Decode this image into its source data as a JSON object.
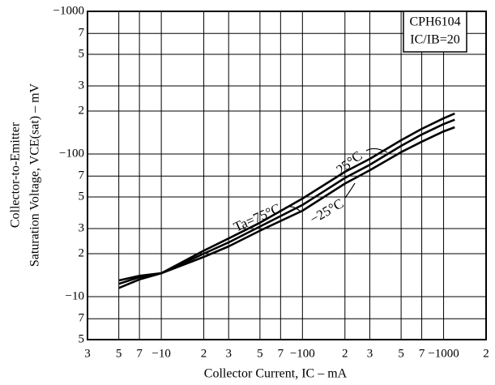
{
  "chart_data": {
    "type": "line",
    "annotations": {
      "box_title": "CPH6104",
      "box_condition": "IC/IB=20"
    },
    "x_label": "Collector Current, IC  – mA",
    "y_label_lines": [
      "Collector-to-Emitter",
      "Saturation Voltage, VCE(sat)  –  mV"
    ],
    "log_x": true,
    "log_y": true,
    "grid": true,
    "x": [
      5,
      7,
      10,
      20,
      30,
      50,
      100,
      200,
      300,
      500,
      700,
      1000,
      1200
    ],
    "series": [
      {
        "name": "Ta=75°C",
        "color": "#000000",
        "values": [
          11.5,
          13.2,
          14.6,
          21,
          25.6,
          33,
          48.7,
          75,
          92.5,
          125,
          150,
          178,
          192
        ]
      },
      {
        "name": "25°C",
        "color": "#000000",
        "values": [
          12.3,
          13.7,
          14.6,
          20,
          24,
          31,
          43.9,
          68,
          84,
          114,
          137,
          162,
          174
        ]
      },
      {
        "name": "−25°C",
        "color": "#000000",
        "values": [
          13,
          14,
          14.6,
          19,
          22.5,
          29,
          40,
          62,
          77,
          103,
          122,
          144,
          154
        ]
      }
    ],
    "xlim": [
      3,
      2000
    ],
    "xticks": [
      3,
      5,
      7,
      {
        "value": 10,
        "label": "−10"
      },
      {
        "value": 20,
        "label": "2"
      },
      {
        "value": 30,
        "label": "3"
      },
      {
        "value": 50,
        "label": "5"
      },
      {
        "value": 70,
        "label": "7"
      },
      {
        "value": 100,
        "label": "−100"
      },
      {
        "value": 200,
        "label": "2"
      },
      {
        "value": 300,
        "label": "3"
      },
      {
        "value": 500,
        "label": "5"
      },
      {
        "value": 700,
        "label": "7"
      },
      {
        "value": 1000,
        "label": "−1000"
      },
      {
        "value": 2000,
        "label": "2"
      }
    ],
    "ylim": [
      5,
      1000
    ],
    "yticks": [
      5,
      7,
      {
        "value": 10,
        "label": "−10"
      },
      {
        "value": 20,
        "label": "2"
      },
      {
        "value": 30,
        "label": "3"
      },
      {
        "value": 50,
        "label": "5"
      },
      {
        "value": 70,
        "label": "7"
      },
      {
        "value": 100,
        "label": "−100"
      },
      {
        "value": 200,
        "label": "2"
      },
      {
        "value": 300,
        "label": "3"
      },
      {
        "value": 500,
        "label": "5"
      },
      {
        "value": 700,
        "label": "7"
      },
      {
        "value": 1000,
        "label": "−1000"
      }
    ]
  }
}
